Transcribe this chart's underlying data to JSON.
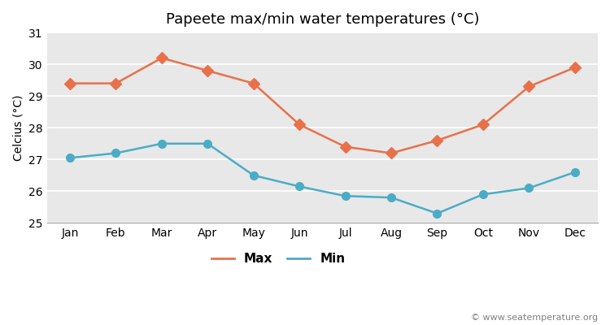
{
  "title": "Papeete max/min water temperatures (°C)",
  "ylabel": "Celcius (°C)",
  "months": [
    "Jan",
    "Feb",
    "Mar",
    "Apr",
    "May",
    "Jun",
    "Jul",
    "Aug",
    "Sep",
    "Oct",
    "Nov",
    "Dec"
  ],
  "max_temps": [
    29.4,
    29.4,
    30.2,
    29.8,
    29.4,
    28.1,
    27.4,
    27.2,
    27.6,
    28.1,
    29.3,
    29.9
  ],
  "min_temps": [
    27.05,
    27.2,
    27.5,
    27.5,
    26.5,
    26.15,
    25.85,
    25.8,
    25.3,
    25.9,
    26.1,
    26.6
  ],
  "max_color": "#e8714a",
  "min_color": "#4bacc6",
  "outer_bg": "#ffffff",
  "plot_bg_color": "#e8e8e8",
  "grid_color": "#ffffff",
  "ylim": [
    25,
    31
  ],
  "yticks": [
    25,
    26,
    27,
    28,
    29,
    30,
    31
  ],
  "watermark": "© www.seatemperature.org",
  "legend_labels": [
    "Max",
    "Min"
  ],
  "title_fontsize": 13,
  "axis_fontsize": 10,
  "tick_fontsize": 10,
  "legend_fontsize": 11,
  "watermark_fontsize": 8,
  "linewidth": 1.8,
  "markersize_max": 7,
  "markersize_min": 7
}
